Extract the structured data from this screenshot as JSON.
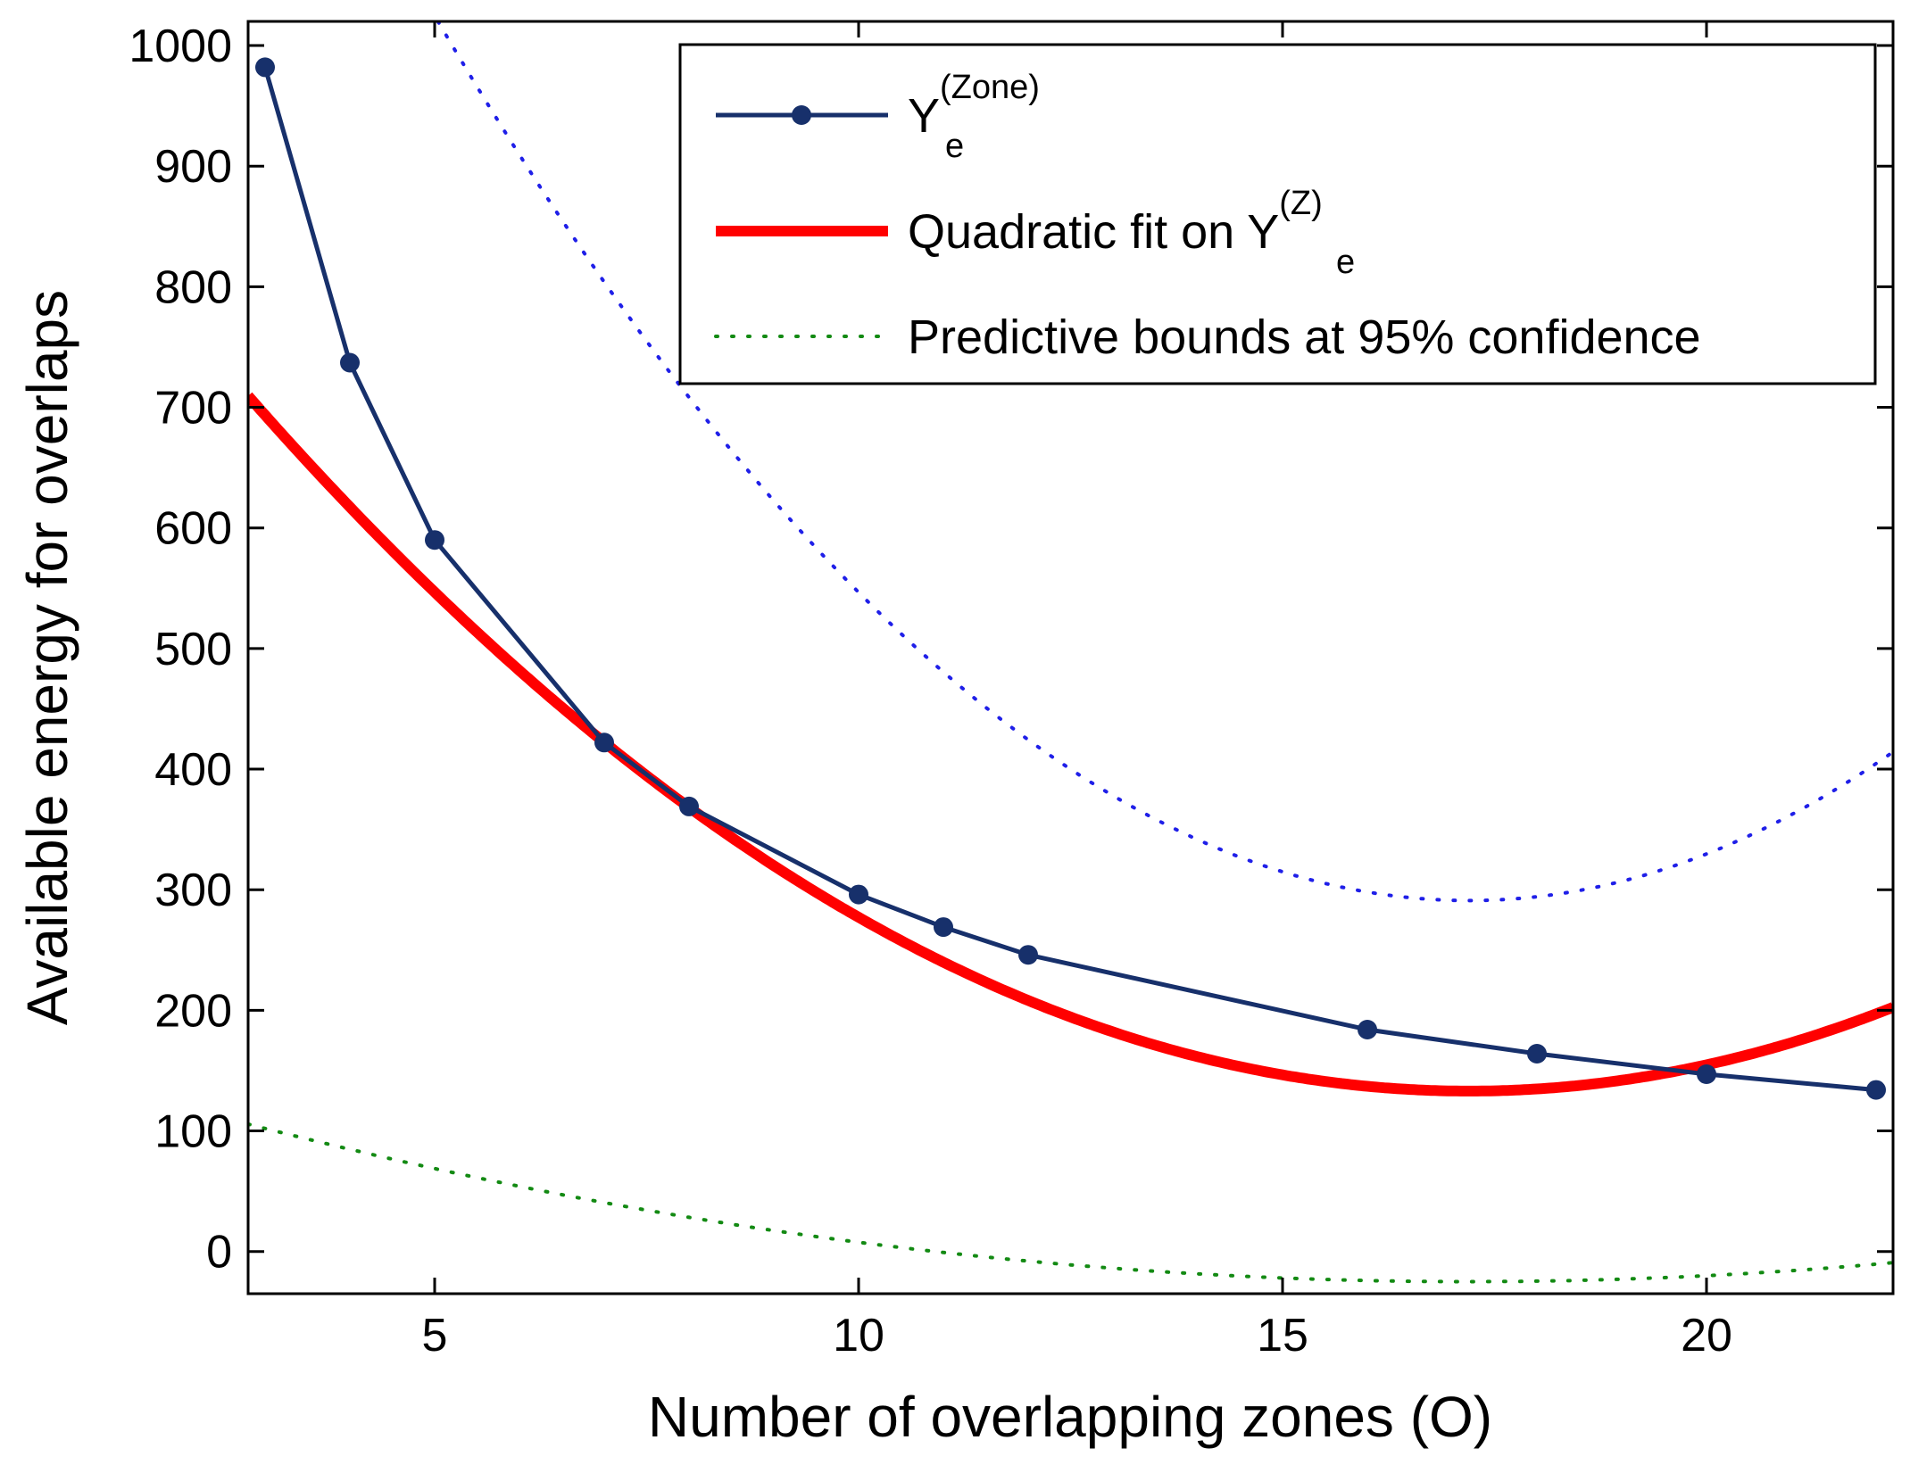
{
  "chart_data": {
    "type": "line",
    "title": "",
    "xlabel": "Number of overlapping zones (O)",
    "ylabel": "Available energy for overlaps",
    "xlim": [
      2.8,
      22.2
    ],
    "ylim": [
      -35,
      1020
    ],
    "xticks": [
      5,
      10,
      15,
      20
    ],
    "yticks": [
      0,
      100,
      200,
      300,
      400,
      500,
      600,
      700,
      800,
      900,
      1000
    ],
    "grid": false,
    "legend_position": "top-right",
    "series": [
      {
        "name": "Y_e^(Zone)",
        "legend_base": "Y",
        "legend_sub": "e",
        "legend_sup": "(Zone)",
        "color": "#17306b",
        "style": "solid-with-markers",
        "x": [
          3,
          4,
          5,
          7,
          8,
          10,
          11,
          12,
          16,
          18,
          20,
          22
        ],
        "y": [
          982,
          737,
          590,
          422,
          369,
          296,
          269,
          246,
          184,
          164,
          147,
          134
        ]
      },
      {
        "name": "Quadratic fit on Y_e^(Z)",
        "legend_base": "Quadratic fit on Y",
        "legend_sub": "e",
        "legend_sup": "(Z)",
        "color": "#ff0000",
        "style": "thick-solid",
        "fit": {
          "a": 2.78,
          "vertex_x": 17.2,
          "vertex_y": 133
        }
      },
      {
        "name": "Predictive bounds at 95% confidence",
        "legend_base": "Predictive bounds at 95% confidence",
        "color_upper": "#1f1fe8",
        "color_lower": "#138a13",
        "style": "dotted",
        "half_width": {
          "base": 158,
          "slope": 2.15,
          "vertex_x": 17.2
        }
      }
    ]
  }
}
